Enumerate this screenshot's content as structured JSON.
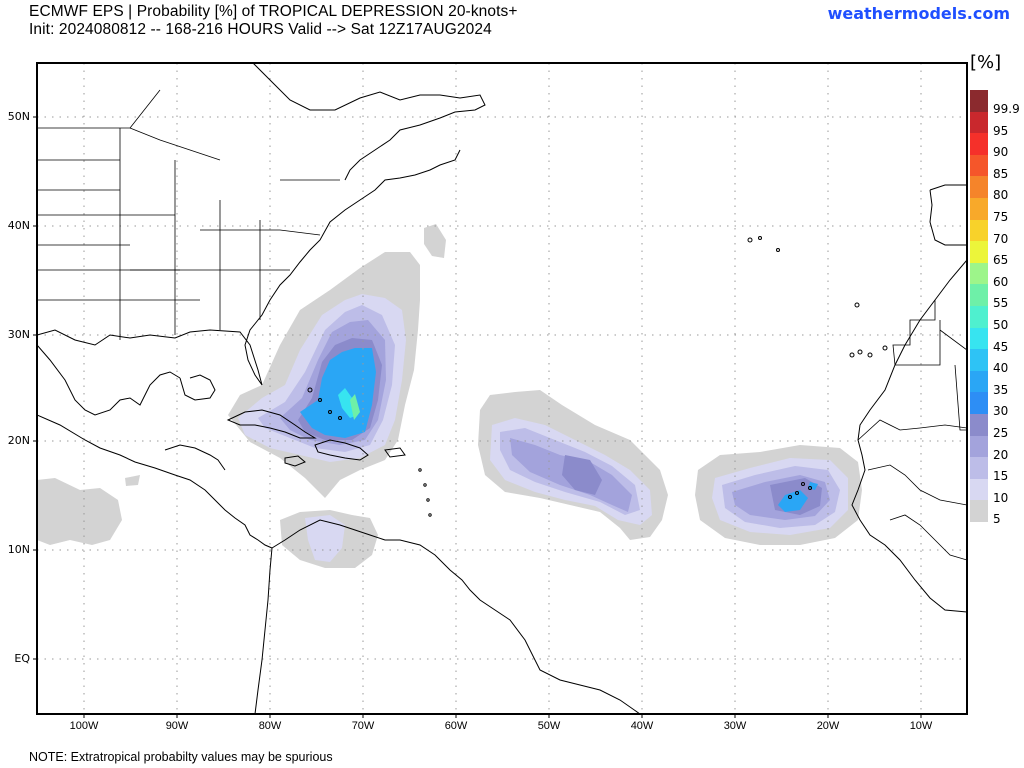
{
  "header": {
    "title_line1": "ECMWF EPS | Probability [%] of TROPICAL DEPRESSION 20-knots+",
    "title_line2": "Init: 2024080812 -- 168-216 HOURS Valid --> Sat 12Z17AUG2024",
    "brand": "weathermodels.com",
    "brand_color": "#1f4fff"
  },
  "map": {
    "region": "Atlantic basin",
    "lat_labels": [
      "50N",
      "40N",
      "30N",
      "20N",
      "10N",
      "EQ"
    ],
    "lon_labels": [
      "100W",
      "90W",
      "80W",
      "70W",
      "60W",
      "50W",
      "40W",
      "30W",
      "20W",
      "10W"
    ],
    "gridlines": "dotted"
  },
  "colorbar": {
    "unit": "[%]",
    "levels": [
      {
        "label": "99.9",
        "color": "#8b2a2e"
      },
      {
        "label": "95",
        "color": "#c9282d"
      },
      {
        "label": "90",
        "color": "#f5302a"
      },
      {
        "label": "85",
        "color": "#f5562a"
      },
      {
        "label": "80",
        "color": "#f5842a"
      },
      {
        "label": "75",
        "color": "#f8a92a"
      },
      {
        "label": "70",
        "color": "#f8d22a"
      },
      {
        "label": "65",
        "color": "#ecf53a"
      },
      {
        "label": "60",
        "color": "#9df58a"
      },
      {
        "label": "55",
        "color": "#6ef0a8"
      },
      {
        "label": "50",
        "color": "#4ff0cf"
      },
      {
        "label": "45",
        "color": "#37e4f0"
      },
      {
        "label": "40",
        "color": "#2ec3f5"
      },
      {
        "label": "35",
        "color": "#2aa6f5"
      },
      {
        "label": "30",
        "color": "#2d8ef5"
      },
      {
        "label": "25",
        "color": "#8b8bcb"
      },
      {
        "label": "20",
        "color": "#a3a3dc"
      },
      {
        "label": "15",
        "color": "#bdbde8"
      },
      {
        "label": "10",
        "color": "#d8d8f2"
      },
      {
        "label": "5",
        "color": "#d3d3d3"
      }
    ]
  },
  "probability_areas": [
    {
      "name": "Bahamas / Greater Antilles",
      "max_level": "40"
    },
    {
      "name": "Central Atlantic",
      "max_level": "25"
    },
    {
      "name": "Cabo Verde region",
      "max_level": "35"
    },
    {
      "name": "Southern Caribbean",
      "max_level": "10"
    },
    {
      "name": "Eastern Pacific off Central America",
      "max_level": "5"
    }
  ],
  "footer": {
    "note": "NOTE: Extratropical probabilty values may be spurious"
  }
}
